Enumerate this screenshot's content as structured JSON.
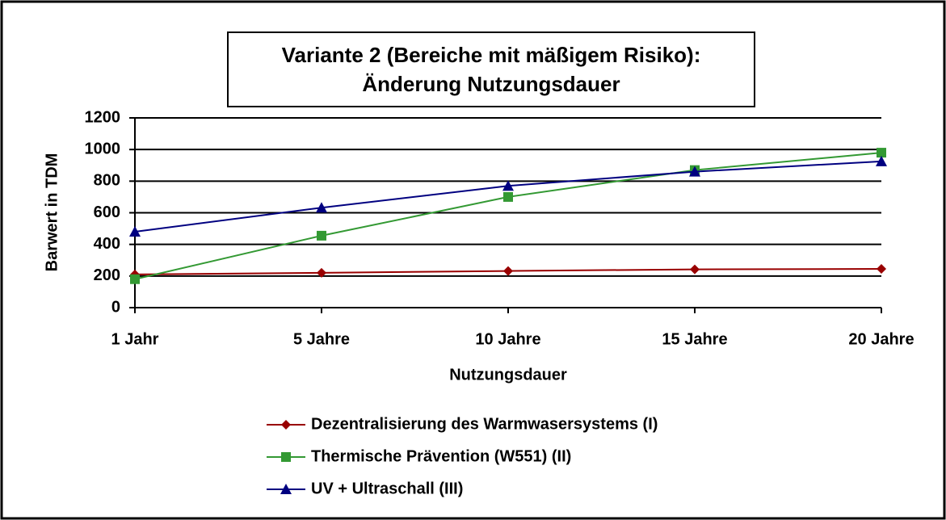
{
  "chart_data": {
    "type": "line",
    "title": [
      "Variante 2 (Bereiche mit mäßigem Risiko):",
      "Änderung Nutzungsdauer"
    ],
    "xlabel": "Nutzungsdauer",
    "ylabel": "Barwert in TDM",
    "categories": [
      "1 Jahr",
      "5 Jahre",
      "10 Jahre",
      "15 Jahre",
      "20 Jahre"
    ],
    "series": [
      {
        "name": "Dezentralisierung des Warmwasersystems (I)",
        "color": "#990000",
        "marker": "diamond",
        "values": [
          210,
          220,
          232,
          242,
          245
        ]
      },
      {
        "name": "Thermische Prävention (W551) (II)",
        "color": "#339933",
        "marker": "square",
        "values": [
          180,
          455,
          700,
          870,
          980
        ]
      },
      {
        "name": "UV + Ultraschall (III)",
        "color": "#000080",
        "marker": "triangle",
        "values": [
          480,
          632,
          770,
          860,
          925
        ]
      }
    ],
    "ylim": [
      0,
      1200
    ],
    "yticks": [
      0,
      200,
      400,
      600,
      800,
      1000,
      1200
    ],
    "grid": true,
    "legend": "bottom"
  }
}
